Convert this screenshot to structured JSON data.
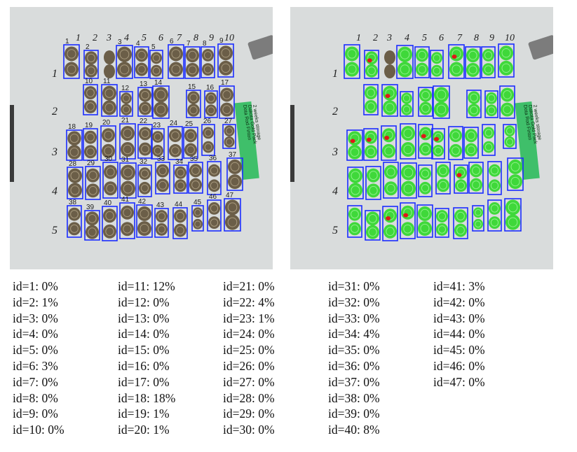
{
  "colors": {
    "board": "#d9dcdc",
    "slice_dark": "#6b5e48",
    "slice_green": "#3fd83a",
    "rot_red": "#e01818",
    "box_blue": "#1a2cff",
    "label_green": "#3fbf6a",
    "text": "#111111"
  },
  "board": {
    "column_numbers": [
      "1",
      "2",
      "3",
      "4",
      "5",
      "6",
      "7",
      "8",
      "9",
      "10"
    ],
    "row_numbers": [
      "1",
      "2",
      "3",
      "4",
      "5"
    ],
    "tag_lines": [
      "Dota Rod Finton",
      "Dakota Gold Pack",
      "2 weeks storage"
    ]
  },
  "results": [
    [
      "id=1: 0%",
      "id=2: 1%",
      "id=3: 0%",
      "id=4: 0%",
      "id=5: 0%",
      "id=6: 3%",
      "id=7: 0%",
      "id=8: 0%",
      "id=9: 0%",
      "id=10: 0%"
    ],
    [
      "id=11: 12%",
      "id=12: 0%",
      "id=13: 0%",
      "id=14: 0%",
      "id=15: 0%",
      "id=16: 0%",
      "id=17: 0%",
      "id=18: 18%",
      "id=19: 1%",
      "id=20: 1%"
    ],
    [
      "id=21: 0%",
      "id=22: 4%",
      "id=23: 1%",
      "id=24: 0%",
      "id=25: 0%",
      "id=26: 0%",
      "id=27: 0%",
      "id=28: 0%",
      "id=29: 0%",
      "id=30: 0%"
    ],
    [
      "id=31: 0%",
      "id=32: 0%",
      "id=33: 0%",
      "id=34: 4%",
      "id=35: 0%",
      "id=36: 0%",
      "id=37: 0%",
      "id=38: 0%",
      "id=39: 0%",
      "id=40: 8%"
    ],
    [
      "id=41: 3%",
      "id=42: 0%",
      "id=43: 0%",
      "id=44: 0%",
      "id=45: 0%",
      "id=46: 0%",
      "id=47: 0%"
    ]
  ]
}
